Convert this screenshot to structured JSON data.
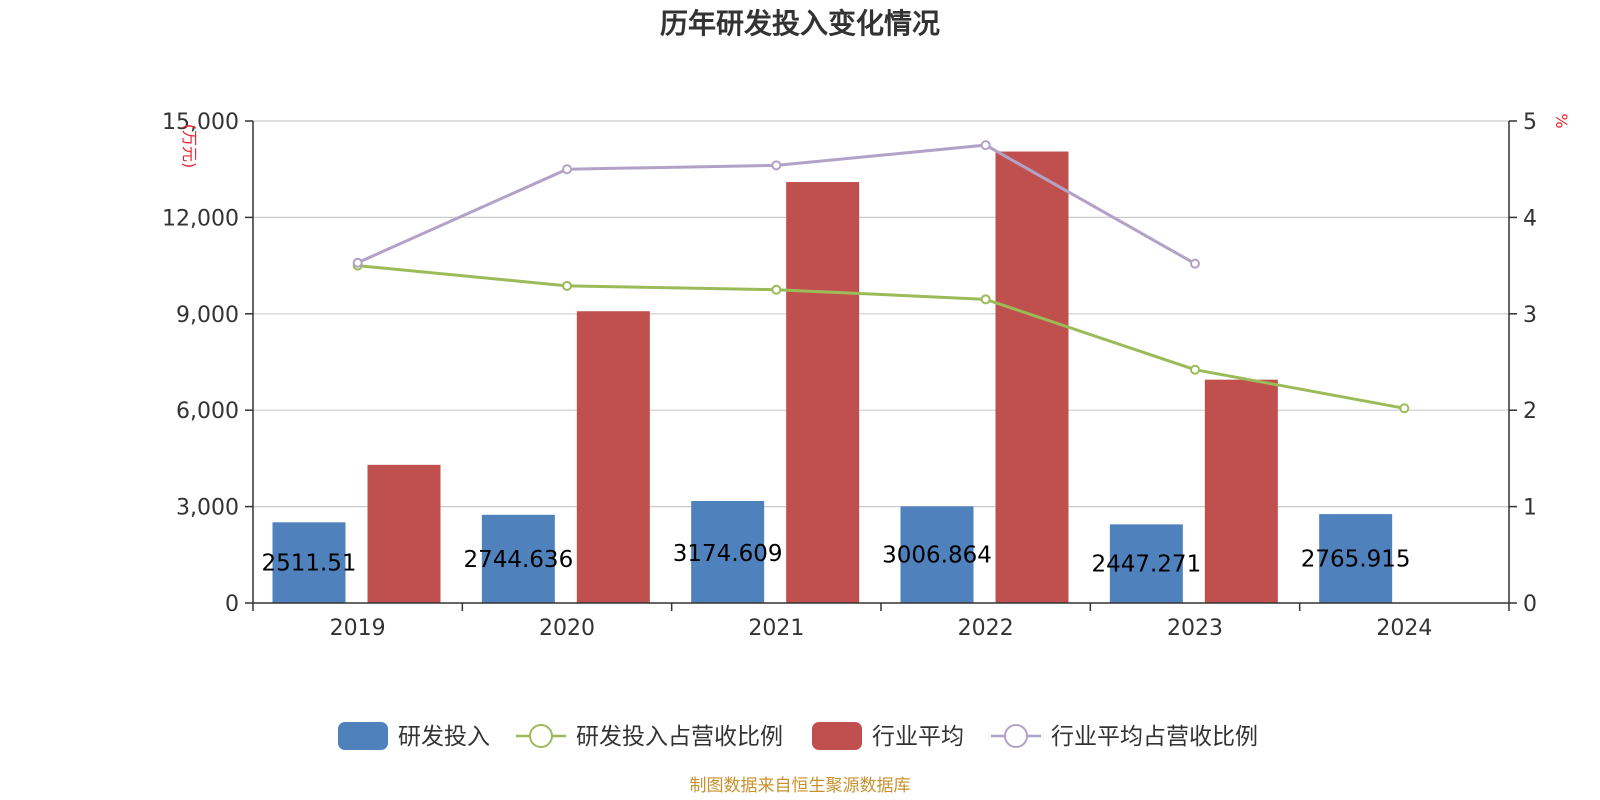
{
  "chart_data": {
    "type": "bar",
    "title": "历年研发投入变化情况",
    "categories": [
      "2019",
      "2020",
      "2021",
      "2022",
      "2023",
      "2024"
    ],
    "left_axis": {
      "unit": "(万元)",
      "ylim": [
        0,
        15000
      ],
      "ticks": [
        "0",
        "3,000",
        "6,000",
        "9,000",
        "12,000",
        "15,000"
      ],
      "tick_values": [
        0,
        3000,
        6000,
        9000,
        12000,
        15000
      ]
    },
    "right_axis": {
      "unit": "%",
      "ylim": [
        0,
        5
      ],
      "ticks": [
        "0",
        "1",
        "2",
        "3",
        "4",
        "5"
      ],
      "tick_values": [
        0,
        1,
        2,
        3,
        4,
        5
      ]
    },
    "series": [
      {
        "name": "研发投入",
        "type": "bar",
        "axis": "left",
        "color": "#4f81bd",
        "values": [
          2511.51,
          2744.636,
          3174.609,
          3006.864,
          2447.271,
          2765.915
        ],
        "labels": [
          "2511.51",
          "2744.636",
          "3174.609",
          "3006.864",
          "2447.271",
          "2765.915"
        ]
      },
      {
        "name": "研发投入占营收比例",
        "type": "line",
        "axis": "right",
        "color": "#9bbb59",
        "values": [
          3.5,
          3.29,
          3.25,
          3.15,
          2.42,
          2.02
        ]
      },
      {
        "name": "行业平均",
        "type": "bar",
        "axis": "left",
        "color": "#c0504d",
        "values": [
          4300,
          9080,
          13100,
          14050,
          6950,
          null
        ]
      },
      {
        "name": "行业平均占营收比例",
        "type": "line",
        "axis": "right",
        "color": "#b3a2c7",
        "values": [
          3.53,
          4.5,
          4.54,
          4.75,
          3.52,
          null
        ]
      }
    ],
    "legend_position": "bottom",
    "grid": true
  },
  "footer": "制图数据来自恒生聚源数据库"
}
